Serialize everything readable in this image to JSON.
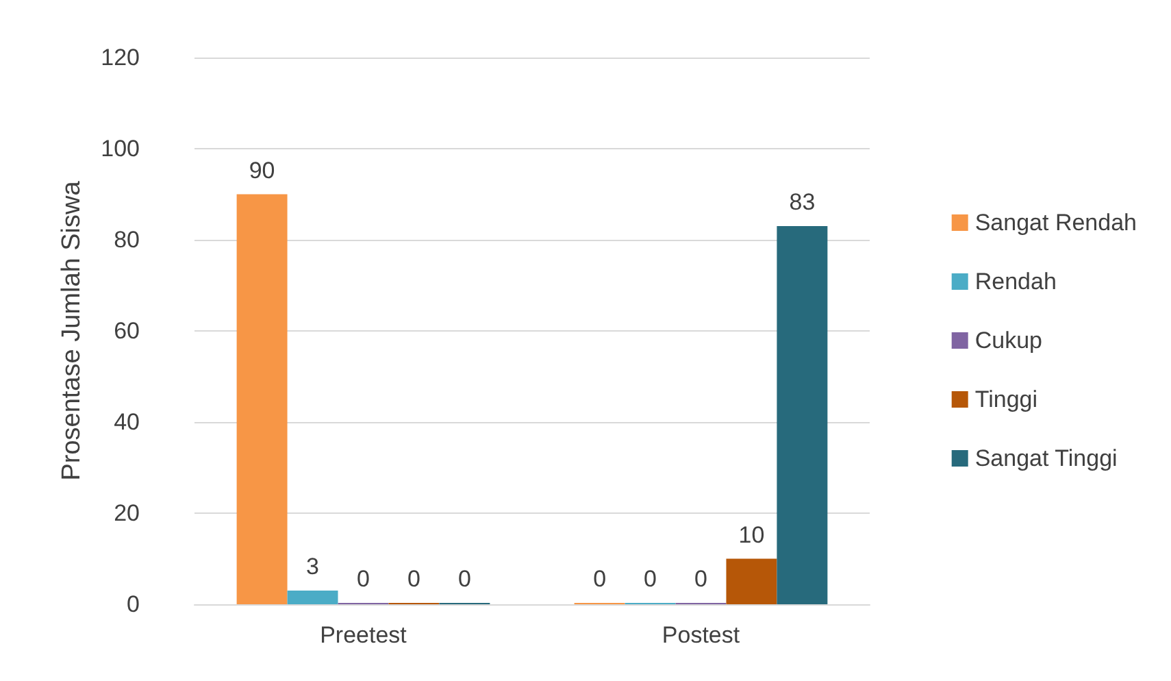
{
  "chart_data": {
    "type": "bar",
    "ylabel": "Prosentase Jumlah Siswa",
    "categories": [
      "Preetest",
      "Postest"
    ],
    "series": [
      {
        "name": "Sangat Rendah",
        "color": "#f79646",
        "values": [
          90,
          0
        ]
      },
      {
        "name": "Rendah",
        "color": "#4bacc6",
        "values": [
          3,
          0
        ]
      },
      {
        "name": "Cukup",
        "color": "#8064a2",
        "values": [
          0,
          0
        ]
      },
      {
        "name": "Tinggi",
        "color": "#b65708",
        "values": [
          0,
          10
        ]
      },
      {
        "name": "Sangat Tinggi",
        "color": "#276a7c",
        "values": [
          0,
          83
        ]
      }
    ],
    "ylim": [
      0,
      120
    ],
    "yticks": [
      0,
      20,
      40,
      60,
      80,
      100,
      120
    ],
    "grid": "y",
    "legend": "right",
    "data_labels": true
  }
}
